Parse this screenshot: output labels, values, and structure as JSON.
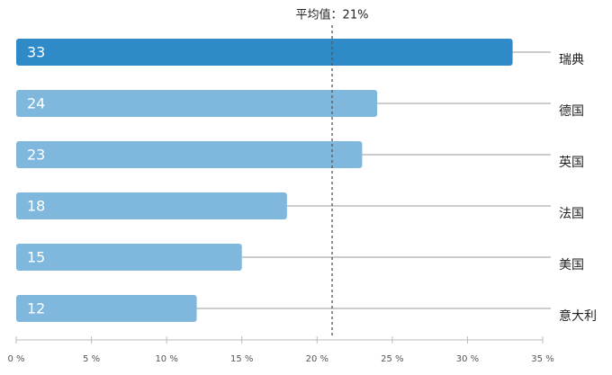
{
  "chart_data": {
    "type": "bar",
    "orientation": "horizontal",
    "categories": [
      "瑞典",
      "德国",
      "英国",
      "法国",
      "美国",
      "意大利"
    ],
    "values": [
      33,
      24,
      23,
      18,
      15,
      12
    ],
    "colors": [
      "#2e8bc8",
      "#80b8dd",
      "#80b8dd",
      "#80b8dd",
      "#80b8dd",
      "#80b8dd"
    ],
    "xlim": [
      0,
      35
    ],
    "xticks": [
      {
        "value": 0,
        "label": "0 %"
      },
      {
        "value": 5,
        "label": "5 %"
      },
      {
        "value": 10,
        "label": "10 %"
      },
      {
        "value": 15,
        "label": "15 %"
      },
      {
        "value": 20,
        "label": "20 %"
      },
      {
        "value": 25,
        "label": "25 %"
      },
      {
        "value": 30,
        "label": "30 %"
      },
      {
        "value": 35,
        "label": "35 %"
      }
    ],
    "average": {
      "value": 21,
      "label": "平均值：21%"
    }
  }
}
